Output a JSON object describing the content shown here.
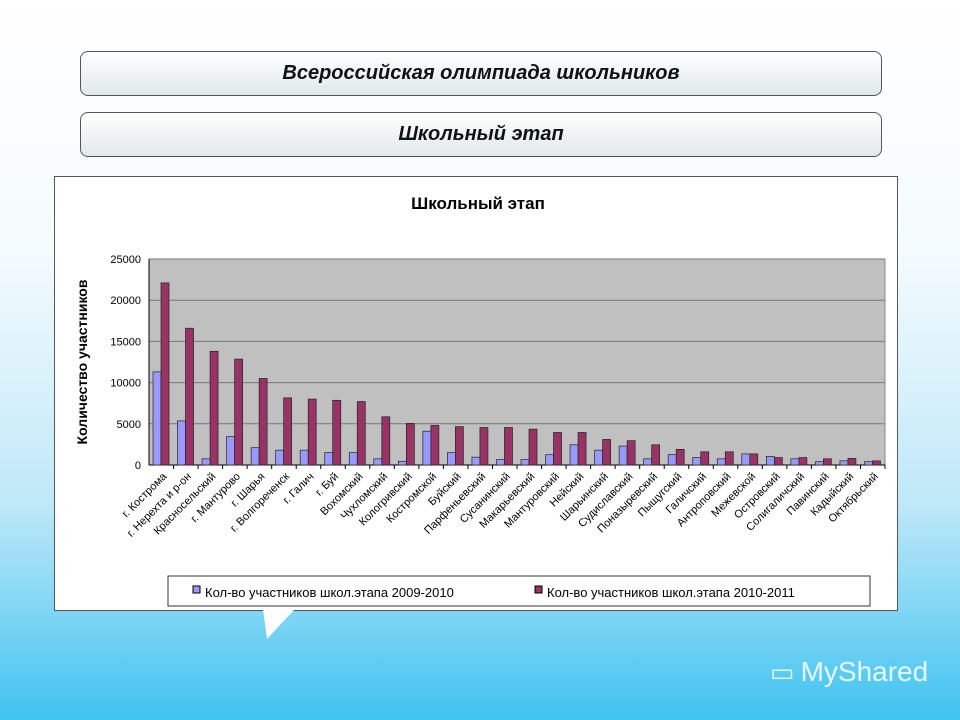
{
  "header": {
    "title": "Всероссийская олимпиада школьников",
    "subtitle": "Школьный этап"
  },
  "watermark": "MyShared",
  "chart_data": {
    "type": "bar",
    "title": "Школьный этап",
    "ylabel": "Количество участников",
    "xlabel": "",
    "ylim": [
      0,
      25000
    ],
    "yticks": [
      0,
      5000,
      10000,
      15000,
      20000,
      25000
    ],
    "grid": true,
    "legend": "bottom",
    "colors": {
      "s1": "#9999ff",
      "s2": "#993366",
      "plot_bg": "#c0c0c0"
    },
    "categories": [
      "г. Кострома",
      "г. Нерехта и р-он",
      "Красносельский",
      "г. Мантурово",
      "г. Шарья",
      "г. Волгореченск",
      "г. Галич",
      "г. Буй",
      "Вохомский",
      "Чухломский",
      "Кологривский",
      "Костромской",
      "Буйский",
      "Парфеньевский",
      "Сусанинский",
      "Макарьевский",
      "Мантуровский",
      "Нейский",
      "Шарьинский",
      "Судиславский",
      "Поназыревский",
      "Пыщугский",
      "Галичский",
      "Антроповский",
      "Межевской",
      "Островский",
      "Солигаличский",
      "Павинский",
      "Кадыйский",
      "Октябрьский"
    ],
    "series": [
      {
        "name": "Кол-во участников школ.этапа 2009-2010",
        "values": [
          11300,
          5350,
          750,
          3450,
          2100,
          1800,
          1800,
          1500,
          1500,
          750,
          450,
          4100,
          1500,
          950,
          650,
          650,
          1250,
          2450,
          1800,
          2300,
          750,
          1250,
          900,
          750,
          1350,
          1050,
          750,
          400,
          500,
          400
        ]
      },
      {
        "name": "Кол-во участников школ.этапа 2010-2011",
        "values": [
          22100,
          16600,
          13800,
          12850,
          10500,
          8150,
          8000,
          7850,
          7700,
          5850,
          5050,
          4800,
          4650,
          4550,
          4550,
          4350,
          3950,
          3950,
          3100,
          2950,
          2450,
          1900,
          1600,
          1600,
          1350,
          900,
          900,
          750,
          800,
          500
        ]
      }
    ]
  }
}
